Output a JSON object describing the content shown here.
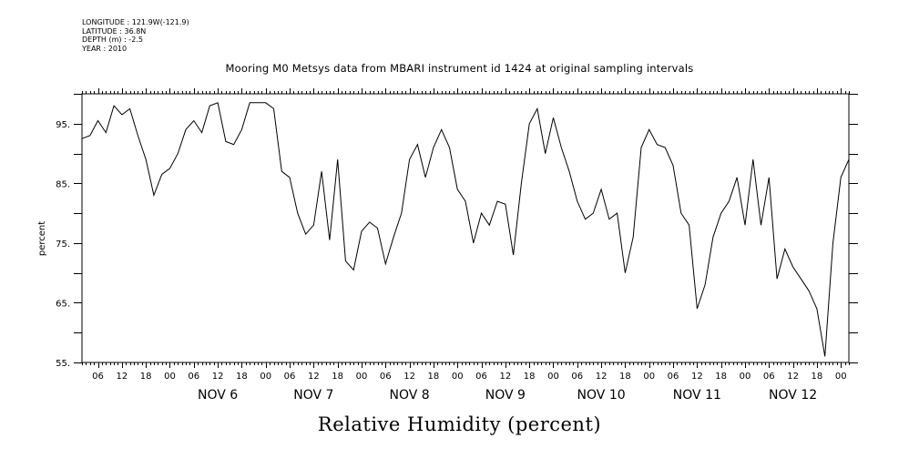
{
  "meta": {
    "longitude": "LONGITUDE : 121.9W(-121.9)",
    "latitude": "LATITUDE : 36.8N",
    "depth": "DEPTH (m) : -2.5",
    "year": "YEAR : 2010"
  },
  "chart_data": {
    "type": "line",
    "title": "Mooring M0 Metsys data from MBARI instrument id 1424 at original sampling intervals",
    "xlabel": "Relative Humidity (percent)",
    "ylabel": "percent",
    "ylim": [
      55,
      100
    ],
    "yticks": [
      55,
      65,
      75,
      85,
      95
    ],
    "ytick_labels": [
      "55.",
      "65.",
      "75.",
      "85.",
      "95."
    ],
    "xlim": [
      "2010-11-05T02:00",
      "2010-11-13T02:00"
    ],
    "hour_tick_labels": [
      "06",
      "12",
      "18",
      "00",
      "06",
      "12",
      "18",
      "00",
      "06",
      "12",
      "18",
      "00",
      "06",
      "12",
      "18",
      "00",
      "06",
      "12",
      "18",
      "00",
      "06",
      "12",
      "18",
      "00",
      "06",
      "12",
      "18",
      "00",
      "06",
      "12",
      "18",
      "00"
    ],
    "day_labels": [
      "NOV  6",
      "NOV  7",
      "NOV  8",
      "NOV  9",
      "NOV 10",
      "NOV 11",
      "NOV 12"
    ],
    "grid": false,
    "series": [
      {
        "color": "#000000",
        "x": [
          "2010-11-05T02:00",
          "2010-11-05T04:00",
          "2010-11-05T06:00",
          "2010-11-05T08:00",
          "2010-11-05T10:00",
          "2010-11-05T12:00",
          "2010-11-05T14:00",
          "2010-11-05T16:00",
          "2010-11-05T18:00",
          "2010-11-05T20:00",
          "2010-11-05T22:00",
          "2010-11-06T00:00",
          "2010-11-06T02:00",
          "2010-11-06T04:00",
          "2010-11-06T06:00",
          "2010-11-06T08:00",
          "2010-11-06T10:00",
          "2010-11-06T12:00",
          "2010-11-06T14:00",
          "2010-11-06T16:00",
          "2010-11-06T18:00",
          "2010-11-06T20:00",
          "2010-11-06T22:00",
          "2010-11-07T00:00",
          "2010-11-07T02:00",
          "2010-11-07T04:00",
          "2010-11-07T06:00",
          "2010-11-07T08:00",
          "2010-11-07T10:00",
          "2010-11-07T12:00",
          "2010-11-07T14:00",
          "2010-11-07T16:00",
          "2010-11-07T18:00",
          "2010-11-07T20:00",
          "2010-11-07T22:00",
          "2010-11-08T00:00",
          "2010-11-08T02:00",
          "2010-11-08T04:00",
          "2010-11-08T06:00",
          "2010-11-08T08:00",
          "2010-11-08T10:00",
          "2010-11-08T12:00",
          "2010-11-08T14:00",
          "2010-11-08T16:00",
          "2010-11-08T18:00",
          "2010-11-08T20:00",
          "2010-11-08T22:00",
          "2010-11-09T00:00",
          "2010-11-09T02:00",
          "2010-11-09T04:00",
          "2010-11-09T06:00",
          "2010-11-09T08:00",
          "2010-11-09T10:00",
          "2010-11-09T12:00",
          "2010-11-09T14:00",
          "2010-11-09T16:00",
          "2010-11-09T18:00",
          "2010-11-09T20:00",
          "2010-11-09T22:00",
          "2010-11-10T00:00",
          "2010-11-10T02:00",
          "2010-11-10T04:00",
          "2010-11-10T06:00",
          "2010-11-10T08:00",
          "2010-11-10T10:00",
          "2010-11-10T12:00",
          "2010-11-10T14:00",
          "2010-11-10T16:00",
          "2010-11-10T18:00",
          "2010-11-10T20:00",
          "2010-11-10T22:00",
          "2010-11-11T00:00",
          "2010-11-11T02:00",
          "2010-11-11T04:00",
          "2010-11-11T06:00",
          "2010-11-11T08:00",
          "2010-11-11T10:00",
          "2010-11-11T12:00",
          "2010-11-11T14:00",
          "2010-11-11T16:00",
          "2010-11-11T18:00",
          "2010-11-11T20:00",
          "2010-11-11T22:00",
          "2010-11-12T00:00",
          "2010-11-12T02:00",
          "2010-11-12T04:00",
          "2010-11-12T06:00",
          "2010-11-12T08:00",
          "2010-11-12T10:00",
          "2010-11-12T12:00",
          "2010-11-12T14:00",
          "2010-11-12T16:00",
          "2010-11-12T18:00",
          "2010-11-12T20:00",
          "2010-11-12T22:00",
          "2010-11-13T00:00",
          "2010-11-13T02:00"
        ],
        "y": [
          92.5,
          93.0,
          95.5,
          93.5,
          98.0,
          96.5,
          97.5,
          93.0,
          89.0,
          83.0,
          86.5,
          87.5,
          90.0,
          94.0,
          95.5,
          93.5,
          98.0,
          98.5,
          92.0,
          91.5,
          94.0,
          98.5,
          98.5,
          98.5,
          97.5,
          87.0,
          86.0,
          80.0,
          76.5,
          78.0,
          87.0,
          75.5,
          89.0,
          72.0,
          70.5,
          77.0,
          78.5,
          77.5,
          71.5,
          76.0,
          80.0,
          89.0,
          91.5,
          86.0,
          91.0,
          94.0,
          91.0,
          84.0,
          82.0,
          75.0,
          80.0,
          78.0,
          82.0,
          81.5,
          73.0,
          85.0,
          95.0,
          97.5,
          90.0,
          96.0,
          91.0,
          87.0,
          82.0,
          79.0,
          80.0,
          84.0,
          79.0,
          80.0,
          70.0,
          76.0,
          91.0,
          94.0,
          91.5,
          91.0,
          88.0,
          80.0,
          78.0,
          64.0,
          68.0,
          76.0,
          80.0,
          82.0,
          86.0,
          78.0,
          89.0,
          78.0,
          86.0,
          69.0,
          74.0,
          71.0,
          69.0,
          67.0,
          64.0,
          56.0,
          75.0,
          86.0,
          89.0
        ]
      }
    ]
  }
}
